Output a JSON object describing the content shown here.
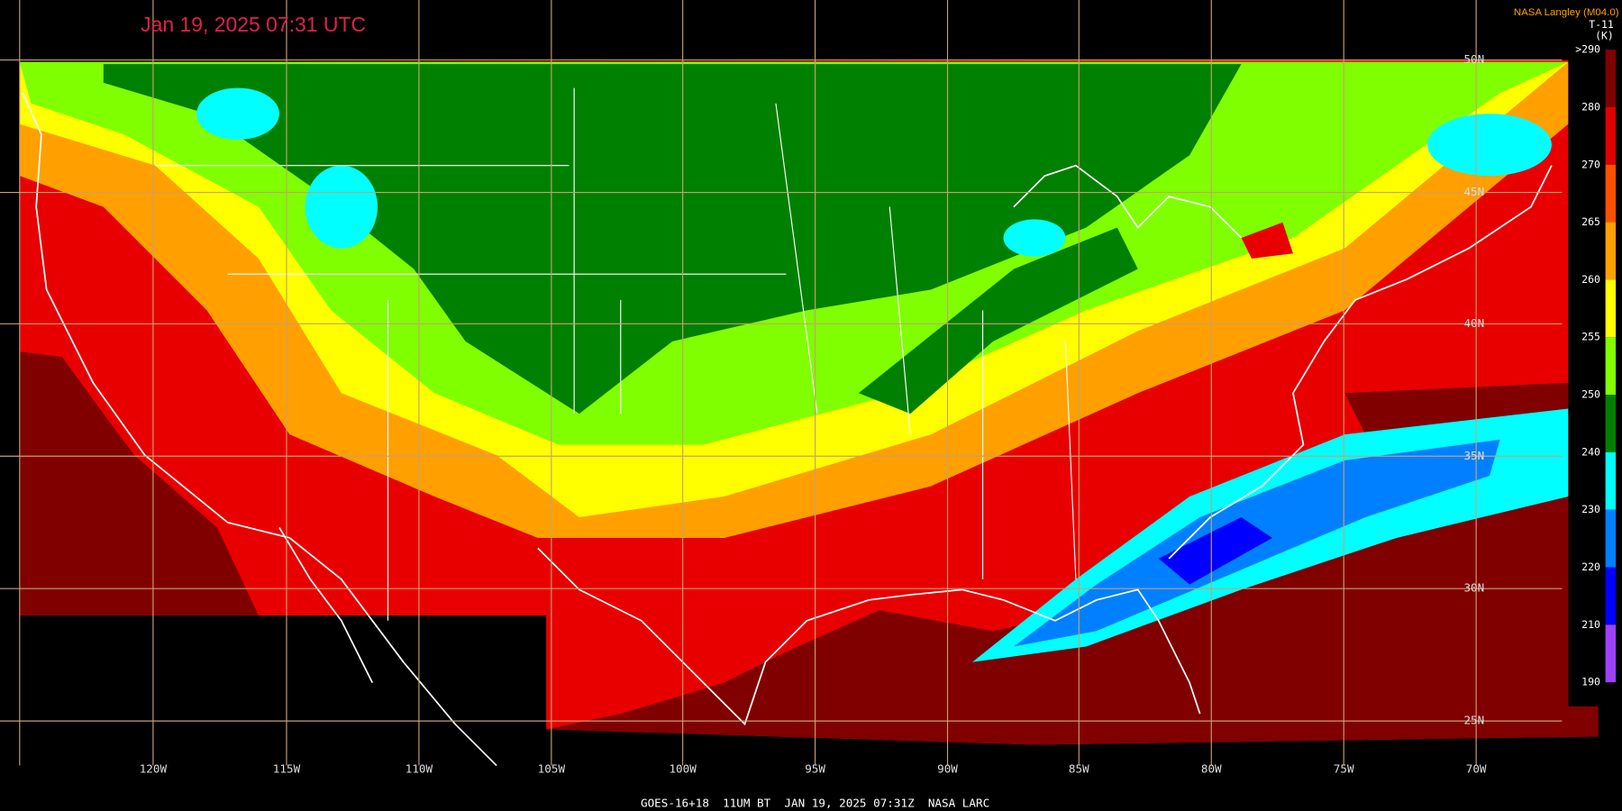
{
  "header": {
    "title": "Jan 19, 2025 07:31 UTC",
    "source": "NASA Langley (M04.0)",
    "channel": "T-11",
    "unit": "(K)"
  },
  "colorbar": {
    "labels": [
      ">290",
      "280",
      "270",
      "265",
      "260",
      "255",
      "250",
      "240",
      "230",
      "220",
      "210",
      "190"
    ],
    "colors": [
      "#800000",
      "#e00000",
      "#ff5000",
      "#ffa000",
      "#ffff00",
      "#80ff00",
      "#008000",
      "#00ffff",
      "#0080ff",
      "#0000ff",
      "#a040ff"
    ]
  },
  "longitude_labels": [
    "120W",
    "115W",
    "110W",
    "105W",
    "100W",
    "95W",
    "90W",
    "85W",
    "80W",
    "75W",
    "70W"
  ],
  "latitude_labels": [
    "50N",
    "45N",
    "40N",
    "35N",
    "30N",
    "25N"
  ],
  "footer": "GOES-16+18  11UM BT  JAN 19, 2025 07:31Z  NASA LARC"
}
